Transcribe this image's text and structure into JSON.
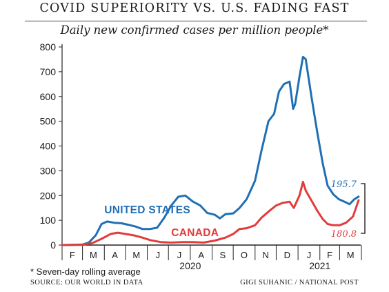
{
  "header": {
    "title": "COVID SUPERIORITY VS. U.S. FADING FAST",
    "subtitle": "Daily new confirmed cases per million people*"
  },
  "footer": {
    "footnote": "* Seven-day rolling average",
    "source": "SOURCE: OUR WORLD IN DATA",
    "credit": "GIGI SUHANIC / NATIONAL POST"
  },
  "colors": {
    "us": "#1f6fb5",
    "canada": "#e23b3b",
    "axis": "#222222",
    "text": "#1a1a1a"
  },
  "chart_data": {
    "type": "line",
    "title": "COVID SUPERIORITY VS. U.S. FADING FAST",
    "subtitle": "Daily new confirmed cases per million people*",
    "x_start": "2020-02-01",
    "x_end": "2021-03-31",
    "ylim": [
      0,
      800
    ],
    "yticks": [
      0,
      100,
      200,
      300,
      400,
      500,
      600,
      700,
      800
    ],
    "month_labels": [
      "F",
      "M",
      "A",
      "M",
      "J",
      "J",
      "A",
      "S",
      "O",
      "N",
      "D",
      "J",
      "F",
      "M"
    ],
    "year_labels": [
      {
        "label": "2020",
        "month_index": 6
      },
      {
        "label": "2021",
        "month_index": 12
      }
    ],
    "grid": false,
    "series": [
      {
        "name": "UNITED STATES",
        "color": "#1f6fb5",
        "end_label": "195.7",
        "points": [
          [
            "2020-02-01",
            0
          ],
          [
            "2020-03-01",
            2
          ],
          [
            "2020-03-10",
            10
          ],
          [
            "2020-03-20",
            40
          ],
          [
            "2020-03-28",
            85
          ],
          [
            "2020-04-05",
            95
          ],
          [
            "2020-04-15",
            90
          ],
          [
            "2020-04-25",
            88
          ],
          [
            "2020-05-05",
            82
          ],
          [
            "2020-05-15",
            75
          ],
          [
            "2020-05-25",
            65
          ],
          [
            "2020-06-05",
            65
          ],
          [
            "2020-06-15",
            70
          ],
          [
            "2020-06-25",
            110
          ],
          [
            "2020-07-05",
            160
          ],
          [
            "2020-07-15",
            195
          ],
          [
            "2020-07-25",
            200
          ],
          [
            "2020-08-05",
            175
          ],
          [
            "2020-08-15",
            160
          ],
          [
            "2020-08-25",
            130
          ],
          [
            "2020-09-05",
            122
          ],
          [
            "2020-09-12",
            108
          ],
          [
            "2020-09-20",
            125
          ],
          [
            "2020-10-01",
            128
          ],
          [
            "2020-10-10",
            150
          ],
          [
            "2020-10-20",
            185
          ],
          [
            "2020-11-01",
            260
          ],
          [
            "2020-11-10",
            380
          ],
          [
            "2020-11-20",
            500
          ],
          [
            "2020-11-28",
            530
          ],
          [
            "2020-12-05",
            620
          ],
          [
            "2020-12-12",
            650
          ],
          [
            "2020-12-20",
            660
          ],
          [
            "2020-12-25",
            550
          ],
          [
            "2020-12-28",
            570
          ],
          [
            "2021-01-03",
            680
          ],
          [
            "2021-01-08",
            760
          ],
          [
            "2021-01-12",
            750
          ],
          [
            "2021-01-20",
            600
          ],
          [
            "2021-01-28",
            460
          ],
          [
            "2021-02-05",
            330
          ],
          [
            "2021-02-12",
            240
          ],
          [
            "2021-02-20",
            205
          ],
          [
            "2021-02-28",
            185
          ],
          [
            "2021-03-08",
            175
          ],
          [
            "2021-03-15",
            165
          ],
          [
            "2021-03-22",
            185
          ],
          [
            "2021-03-28",
            195.7
          ]
        ]
      },
      {
        "name": "CANADA",
        "color": "#e23b3b",
        "end_label": "180.8",
        "points": [
          [
            "2020-02-01",
            0
          ],
          [
            "2020-03-01",
            1
          ],
          [
            "2020-03-15",
            8
          ],
          [
            "2020-03-28",
            25
          ],
          [
            "2020-04-10",
            45
          ],
          [
            "2020-04-20",
            50
          ],
          [
            "2020-05-01",
            45
          ],
          [
            "2020-05-15",
            38
          ],
          [
            "2020-05-25",
            30
          ],
          [
            "2020-06-05",
            20
          ],
          [
            "2020-06-20",
            12
          ],
          [
            "2020-07-05",
            10
          ],
          [
            "2020-07-20",
            12
          ],
          [
            "2020-08-05",
            12
          ],
          [
            "2020-08-20",
            10
          ],
          [
            "2020-09-05",
            18
          ],
          [
            "2020-09-20",
            30
          ],
          [
            "2020-10-01",
            45
          ],
          [
            "2020-10-10",
            65
          ],
          [
            "2020-10-20",
            68
          ],
          [
            "2020-11-01",
            80
          ],
          [
            "2020-11-10",
            110
          ],
          [
            "2020-11-20",
            135
          ],
          [
            "2020-12-01",
            160
          ],
          [
            "2020-12-10",
            170
          ],
          [
            "2020-12-20",
            175
          ],
          [
            "2020-12-26",
            150
          ],
          [
            "2021-01-03",
            200
          ],
          [
            "2021-01-08",
            255
          ],
          [
            "2021-01-12",
            220
          ],
          [
            "2021-01-20",
            180
          ],
          [
            "2021-01-28",
            140
          ],
          [
            "2021-02-05",
            105
          ],
          [
            "2021-02-12",
            85
          ],
          [
            "2021-02-20",
            80
          ],
          [
            "2021-03-01",
            80
          ],
          [
            "2021-03-10",
            90
          ],
          [
            "2021-03-20",
            115
          ],
          [
            "2021-03-28",
            180.8
          ]
        ]
      }
    ],
    "annotations": [
      {
        "text": "UNITED STATES",
        "date": "2020-04-01",
        "value": 145,
        "series": 0
      },
      {
        "text": "CANADA",
        "date": "2020-07-05",
        "value": 53,
        "series": 1
      }
    ]
  }
}
